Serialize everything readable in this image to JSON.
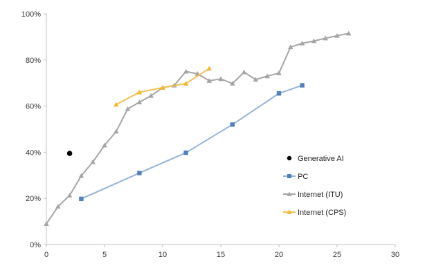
{
  "chart_data": {
    "type": "line",
    "title": "",
    "xlabel": "",
    "ylabel": "",
    "xlim": [
      0,
      30
    ],
    "ylim": [
      0,
      1
    ],
    "x_ticks": [
      0,
      5,
      10,
      15,
      20,
      25,
      30
    ],
    "y_ticks": [
      0,
      0.2,
      0.4,
      0.6,
      0.8,
      1.0
    ],
    "x_tick_labels": [
      "0",
      "5",
      "10",
      "15",
      "20",
      "25",
      "30"
    ],
    "y_tick_labels": [
      "0%",
      "20%",
      "40%",
      "60%",
      "80%",
      "100%"
    ],
    "grid": false,
    "legend_position": "right",
    "series": [
      {
        "name": "Generative AI",
        "marker": "circle",
        "line": false,
        "color": "#000000",
        "points": [
          [
            2,
            0.395
          ]
        ]
      },
      {
        "name": "PC",
        "marker": "square",
        "line": true,
        "color": "#4f81bd",
        "line_color": "#95b3d7",
        "points": [
          [
            3,
            0.198
          ],
          [
            8,
            0.31
          ],
          [
            12,
            0.398
          ],
          [
            16,
            0.52
          ],
          [
            20,
            0.655
          ],
          [
            22,
            0.69
          ]
        ]
      },
      {
        "name": "Internet (ITU)",
        "marker": "triangle",
        "line": true,
        "color": "#a5a5a5",
        "line_color": "#a5a5a5",
        "points": [
          [
            0,
            0.09
          ],
          [
            1,
            0.165
          ],
          [
            2,
            0.213
          ],
          [
            3,
            0.298
          ],
          [
            4,
            0.358
          ],
          [
            5,
            0.43
          ],
          [
            6,
            0.49
          ],
          [
            7,
            0.588
          ],
          [
            8,
            0.617
          ],
          [
            9,
            0.645
          ],
          [
            10,
            0.68
          ],
          [
            11,
            0.69
          ],
          [
            12,
            0.75
          ],
          [
            13,
            0.74
          ],
          [
            14,
            0.71
          ],
          [
            15,
            0.718
          ],
          [
            16,
            0.698
          ],
          [
            17,
            0.747
          ],
          [
            18,
            0.715
          ],
          [
            19,
            0.73
          ],
          [
            20,
            0.743
          ],
          [
            21,
            0.856
          ],
          [
            22,
            0.872
          ],
          [
            23,
            0.882
          ],
          [
            24,
            0.894
          ],
          [
            25,
            0.905
          ],
          [
            26,
            0.915
          ]
        ]
      },
      {
        "name": "Internet (CPS)",
        "marker": "triangle",
        "line": true,
        "color": "#f2b830",
        "line_color": "#f2c14e",
        "points": [
          [
            6,
            0.607
          ],
          [
            8,
            0.66
          ],
          [
            10,
            0.68
          ],
          [
            12,
            0.698
          ],
          [
            14,
            0.763
          ]
        ]
      }
    ]
  }
}
